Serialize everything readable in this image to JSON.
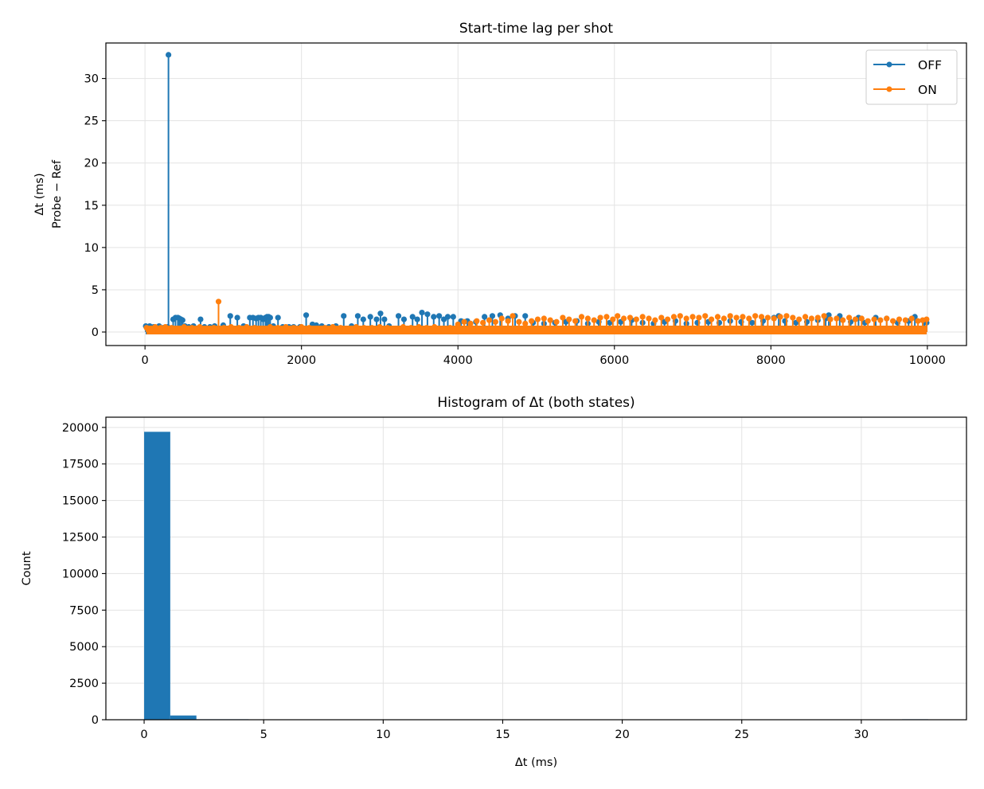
{
  "chart_data": [
    {
      "type": "line",
      "title": "Start-time lag per shot",
      "ylabel_line1": "Δt (ms)",
      "ylabel_line2": "Probe − Ref",
      "xlabel": "",
      "xlim": [
        -500,
        10500
      ],
      "ylim": [
        -1.6,
        34.2
      ],
      "xticks": [
        0,
        2000,
        4000,
        6000,
        8000,
        10000
      ],
      "xtick_labels": [
        "0",
        "2000",
        "4000",
        "6000",
        "8000",
        "10000"
      ],
      "yticks": [
        0,
        5,
        10,
        15,
        20,
        25,
        30
      ],
      "ytick_labels": [
        "0",
        "5",
        "10",
        "15",
        "20",
        "25",
        "30"
      ],
      "grid": true,
      "legend_position": "top-right",
      "series": [
        {
          "name": "OFF",
          "color": "#1f77b4",
          "marker": "o",
          "x": [
            10,
            60,
            110,
            180,
            230,
            290,
            300,
            360,
            390,
            420,
            440,
            460,
            480,
            510,
            560,
            620,
            710,
            760,
            830,
            890,
            1000,
            1090,
            1180,
            1260,
            1340,
            1380,
            1420,
            1450,
            1480,
            1510,
            1540,
            1560,
            1580,
            1600,
            1640,
            1700,
            1760,
            1840,
            1900,
            1980,
            2060,
            2140,
            2190,
            2260,
            2350,
            2440,
            2540,
            2640,
            2720,
            2790,
            2880,
            2960,
            3010,
            3060,
            3120,
            3240,
            3310,
            3420,
            3480,
            3540,
            3610,
            3690,
            3760,
            3820,
            3870,
            3940,
            4040,
            4120,
            4230,
            4340,
            4440,
            4540,
            4640,
            4730,
            4860,
            4960,
            5100,
            5240,
            5380,
            5520,
            5660,
            5800,
            5940,
            6080,
            6220,
            6360,
            6500,
            6640,
            6780,
            6920,
            7060,
            7200,
            7340,
            7480,
            7620,
            7760,
            7900,
            8040,
            8100,
            8180,
            8320,
            8460,
            8600,
            8700,
            8740,
            8880,
            9020,
            9120,
            9200,
            9340,
            9480,
            9620,
            9760,
            9840,
            9960,
            9990
          ],
          "y": [
            0.7,
            0.7,
            0.6,
            0.7,
            0.5,
            0.6,
            32.8,
            1.5,
            1.7,
            1.7,
            1.6,
            1.5,
            1.4,
            0.7,
            0.6,
            0.7,
            1.5,
            0.6,
            0.6,
            0.7,
            0.8,
            1.9,
            1.7,
            0.7,
            1.7,
            1.7,
            1.6,
            1.7,
            1.7,
            1.5,
            1.7,
            1.8,
            1.8,
            1.7,
            0.7,
            1.7,
            0.6,
            0.6,
            0.6,
            0.6,
            2.0,
            0.9,
            0.8,
            0.7,
            0.6,
            0.7,
            1.9,
            0.7,
            1.9,
            1.5,
            1.8,
            1.5,
            2.2,
            1.5,
            0.7,
            1.9,
            1.5,
            1.8,
            1.5,
            2.3,
            2.1,
            1.8,
            1.9,
            1.5,
            1.8,
            1.8,
            1.3,
            1.3,
            1.2,
            1.8,
            1.9,
            2.0,
            1.6,
            1.9,
            1.9,
            1.1,
            1.0,
            1.1,
            1.2,
            1.3,
            1.0,
            1.2,
            1.1,
            1.2,
            1.4,
            1.1,
            1.0,
            1.2,
            1.3,
            1.0,
            1.1,
            1.2,
            1.1,
            1.3,
            1.2,
            1.1,
            1.3,
            1.7,
            1.9,
            1.3,
            1.1,
            1.2,
            1.4,
            1.6,
            2.0,
            1.9,
            1.2,
            1.7,
            1.1,
            1.7,
            1.6,
            1.1,
            1.3,
            1.8,
            1.2,
            1.1
          ]
        },
        {
          "name": "ON",
          "color": "#ff7f0e",
          "marker": "o",
          "x": [
            20,
            70,
            130,
            200,
            260,
            340,
            420,
            500,
            600,
            700,
            800,
            880,
            940,
            1010,
            1100,
            1200,
            1300,
            1400,
            1500,
            1600,
            1700,
            1800,
            1900,
            2000,
            2100,
            2200,
            2300,
            2400,
            2500,
            2600,
            2700,
            2800,
            2900,
            3000,
            3100,
            3200,
            3300,
            3400,
            3500,
            3600,
            3700,
            3800,
            3900,
            4000,
            4080,
            4160,
            4240,
            4320,
            4400,
            4480,
            4560,
            4640,
            4700,
            4780,
            4860,
            4940,
            5020,
            5100,
            5180,
            5260,
            5340,
            5420,
            5500,
            5580,
            5660,
            5740,
            5820,
            5900,
            5980,
            6040,
            6120,
            6200,
            6280,
            6360,
            6440,
            6520,
            6600,
            6680,
            6760,
            6840,
            6920,
            7000,
            7080,
            7160,
            7240,
            7320,
            7400,
            7480,
            7560,
            7640,
            7720,
            7800,
            7880,
            7960,
            8040,
            8120,
            8200,
            8280,
            8360,
            8440,
            8520,
            8600,
            8680,
            8760,
            8840,
            8920,
            9000,
            9080,
            9160,
            9240,
            9320,
            9400,
            9480,
            9560,
            9640,
            9720,
            9800,
            9880,
            9940,
            9990
          ],
          "y": [
            0.5,
            0.4,
            0.6,
            0.5,
            0.6,
            0.5,
            0.4,
            0.6,
            0.5,
            0.6,
            0.4,
            0.5,
            3.6,
            0.5,
            0.6,
            0.5,
            0.6,
            0.5,
            0.4,
            0.6,
            0.5,
            0.6,
            0.5,
            0.6,
            0.5,
            0.4,
            0.5,
            0.6,
            0.5,
            0.4,
            0.6,
            0.5,
            0.5,
            0.6,
            0.5,
            0.4,
            0.6,
            0.5,
            0.6,
            0.5,
            0.6,
            0.4,
            0.5,
            0.9,
            1.2,
            1.0,
            1.3,
            1.1,
            1.4,
            1.2,
            1.6,
            1.3,
            1.9,
            1.2,
            1.0,
            1.3,
            1.5,
            1.6,
            1.4,
            1.2,
            1.7,
            1.5,
            1.3,
            1.8,
            1.6,
            1.4,
            1.7,
            1.8,
            1.5,
            1.9,
            1.6,
            1.7,
            1.5,
            1.8,
            1.6,
            1.4,
            1.7,
            1.5,
            1.8,
            1.9,
            1.6,
            1.8,
            1.7,
            1.9,
            1.5,
            1.8,
            1.6,
            1.9,
            1.7,
            1.8,
            1.6,
            1.9,
            1.8,
            1.7,
            1.6,
            1.8,
            1.9,
            1.7,
            1.5,
            1.8,
            1.6,
            1.7,
            1.9,
            1.5,
            1.6,
            1.4,
            1.7,
            1.5,
            1.6,
            1.3,
            1.5,
            1.4,
            1.6,
            1.3,
            1.5,
            1.4,
            1.6,
            1.3,
            1.4,
            1.5
          ]
        }
      ]
    },
    {
      "type": "bar",
      "title": "Histogram of Δt (both states)",
      "xlabel": "Δt (ms)",
      "ylabel": "Count",
      "xlim": [
        -1.6,
        34.4
      ],
      "ylim": [
        0,
        20700
      ],
      "xticks": [
        0,
        5,
        10,
        15,
        20,
        25,
        30
      ],
      "xtick_labels": [
        "0",
        "5",
        "10",
        "15",
        "20",
        "25",
        "30"
      ],
      "yticks": [
        0,
        2500,
        5000,
        7500,
        10000,
        12500,
        15000,
        17500,
        20000
      ],
      "ytick_labels": [
        "0",
        "2500",
        "5000",
        "7500",
        "10000",
        "12500",
        "15000",
        "17500",
        "20000"
      ],
      "grid": true,
      "color": "#1f77b4",
      "bin_edges": [
        0,
        1.093,
        2.187,
        3.28,
        4.373,
        5.467,
        6.56,
        7.653,
        8.747,
        9.84,
        10.933,
        12.027,
        13.12,
        14.213,
        15.307,
        16.4,
        17.493,
        18.587,
        19.68,
        20.773,
        21.867,
        22.96,
        24.053,
        25.147,
        26.24,
        27.333,
        28.427,
        29.52,
        30.613,
        31.707,
        32.8
      ],
      "counts": [
        19700,
        290,
        1,
        1,
        0,
        0,
        0,
        0,
        0,
        0,
        0,
        0,
        0,
        0,
        0,
        0,
        0,
        0,
        0,
        0,
        0,
        0,
        0,
        0,
        0,
        0,
        0,
        0,
        0,
        1
      ]
    }
  ]
}
